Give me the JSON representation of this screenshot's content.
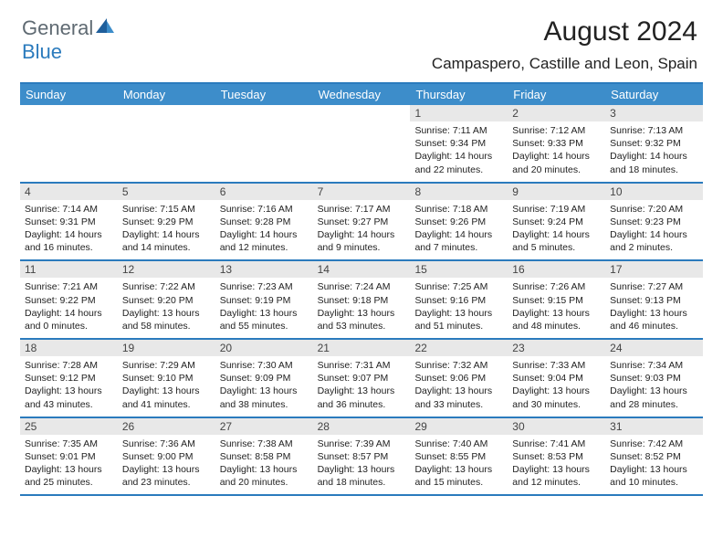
{
  "logo": {
    "text1": "General",
    "text2": "Blue"
  },
  "title": "August 2024",
  "location": "Campaspero, Castille and Leon, Spain",
  "colors": {
    "header_bg": "#3d8dca",
    "header_text": "#ffffff",
    "border": "#2b7bbd",
    "date_bg": "#e8e8e8",
    "logo_gray": "#5f6a72",
    "logo_blue": "#2b7bbd"
  },
  "day_names": [
    "Sunday",
    "Monday",
    "Tuesday",
    "Wednesday",
    "Thursday",
    "Friday",
    "Saturday"
  ],
  "weeks": [
    [
      {
        "date": "",
        "sunrise": "",
        "sunset": "",
        "daylight1": "",
        "daylight2": ""
      },
      {
        "date": "",
        "sunrise": "",
        "sunset": "",
        "daylight1": "",
        "daylight2": ""
      },
      {
        "date": "",
        "sunrise": "",
        "sunset": "",
        "daylight1": "",
        "daylight2": ""
      },
      {
        "date": "",
        "sunrise": "",
        "sunset": "",
        "daylight1": "",
        "daylight2": ""
      },
      {
        "date": "1",
        "sunrise": "Sunrise: 7:11 AM",
        "sunset": "Sunset: 9:34 PM",
        "daylight1": "Daylight: 14 hours",
        "daylight2": "and 22 minutes."
      },
      {
        "date": "2",
        "sunrise": "Sunrise: 7:12 AM",
        "sunset": "Sunset: 9:33 PM",
        "daylight1": "Daylight: 14 hours",
        "daylight2": "and 20 minutes."
      },
      {
        "date": "3",
        "sunrise": "Sunrise: 7:13 AM",
        "sunset": "Sunset: 9:32 PM",
        "daylight1": "Daylight: 14 hours",
        "daylight2": "and 18 minutes."
      }
    ],
    [
      {
        "date": "4",
        "sunrise": "Sunrise: 7:14 AM",
        "sunset": "Sunset: 9:31 PM",
        "daylight1": "Daylight: 14 hours",
        "daylight2": "and 16 minutes."
      },
      {
        "date": "5",
        "sunrise": "Sunrise: 7:15 AM",
        "sunset": "Sunset: 9:29 PM",
        "daylight1": "Daylight: 14 hours",
        "daylight2": "and 14 minutes."
      },
      {
        "date": "6",
        "sunrise": "Sunrise: 7:16 AM",
        "sunset": "Sunset: 9:28 PM",
        "daylight1": "Daylight: 14 hours",
        "daylight2": "and 12 minutes."
      },
      {
        "date": "7",
        "sunrise": "Sunrise: 7:17 AM",
        "sunset": "Sunset: 9:27 PM",
        "daylight1": "Daylight: 14 hours",
        "daylight2": "and 9 minutes."
      },
      {
        "date": "8",
        "sunrise": "Sunrise: 7:18 AM",
        "sunset": "Sunset: 9:26 PM",
        "daylight1": "Daylight: 14 hours",
        "daylight2": "and 7 minutes."
      },
      {
        "date": "9",
        "sunrise": "Sunrise: 7:19 AM",
        "sunset": "Sunset: 9:24 PM",
        "daylight1": "Daylight: 14 hours",
        "daylight2": "and 5 minutes."
      },
      {
        "date": "10",
        "sunrise": "Sunrise: 7:20 AM",
        "sunset": "Sunset: 9:23 PM",
        "daylight1": "Daylight: 14 hours",
        "daylight2": "and 2 minutes."
      }
    ],
    [
      {
        "date": "11",
        "sunrise": "Sunrise: 7:21 AM",
        "sunset": "Sunset: 9:22 PM",
        "daylight1": "Daylight: 14 hours",
        "daylight2": "and 0 minutes."
      },
      {
        "date": "12",
        "sunrise": "Sunrise: 7:22 AM",
        "sunset": "Sunset: 9:20 PM",
        "daylight1": "Daylight: 13 hours",
        "daylight2": "and 58 minutes."
      },
      {
        "date": "13",
        "sunrise": "Sunrise: 7:23 AM",
        "sunset": "Sunset: 9:19 PM",
        "daylight1": "Daylight: 13 hours",
        "daylight2": "and 55 minutes."
      },
      {
        "date": "14",
        "sunrise": "Sunrise: 7:24 AM",
        "sunset": "Sunset: 9:18 PM",
        "daylight1": "Daylight: 13 hours",
        "daylight2": "and 53 minutes."
      },
      {
        "date": "15",
        "sunrise": "Sunrise: 7:25 AM",
        "sunset": "Sunset: 9:16 PM",
        "daylight1": "Daylight: 13 hours",
        "daylight2": "and 51 minutes."
      },
      {
        "date": "16",
        "sunrise": "Sunrise: 7:26 AM",
        "sunset": "Sunset: 9:15 PM",
        "daylight1": "Daylight: 13 hours",
        "daylight2": "and 48 minutes."
      },
      {
        "date": "17",
        "sunrise": "Sunrise: 7:27 AM",
        "sunset": "Sunset: 9:13 PM",
        "daylight1": "Daylight: 13 hours",
        "daylight2": "and 46 minutes."
      }
    ],
    [
      {
        "date": "18",
        "sunrise": "Sunrise: 7:28 AM",
        "sunset": "Sunset: 9:12 PM",
        "daylight1": "Daylight: 13 hours",
        "daylight2": "and 43 minutes."
      },
      {
        "date": "19",
        "sunrise": "Sunrise: 7:29 AM",
        "sunset": "Sunset: 9:10 PM",
        "daylight1": "Daylight: 13 hours",
        "daylight2": "and 41 minutes."
      },
      {
        "date": "20",
        "sunrise": "Sunrise: 7:30 AM",
        "sunset": "Sunset: 9:09 PM",
        "daylight1": "Daylight: 13 hours",
        "daylight2": "and 38 minutes."
      },
      {
        "date": "21",
        "sunrise": "Sunrise: 7:31 AM",
        "sunset": "Sunset: 9:07 PM",
        "daylight1": "Daylight: 13 hours",
        "daylight2": "and 36 minutes."
      },
      {
        "date": "22",
        "sunrise": "Sunrise: 7:32 AM",
        "sunset": "Sunset: 9:06 PM",
        "daylight1": "Daylight: 13 hours",
        "daylight2": "and 33 minutes."
      },
      {
        "date": "23",
        "sunrise": "Sunrise: 7:33 AM",
        "sunset": "Sunset: 9:04 PM",
        "daylight1": "Daylight: 13 hours",
        "daylight2": "and 30 minutes."
      },
      {
        "date": "24",
        "sunrise": "Sunrise: 7:34 AM",
        "sunset": "Sunset: 9:03 PM",
        "daylight1": "Daylight: 13 hours",
        "daylight2": "and 28 minutes."
      }
    ],
    [
      {
        "date": "25",
        "sunrise": "Sunrise: 7:35 AM",
        "sunset": "Sunset: 9:01 PM",
        "daylight1": "Daylight: 13 hours",
        "daylight2": "and 25 minutes."
      },
      {
        "date": "26",
        "sunrise": "Sunrise: 7:36 AM",
        "sunset": "Sunset: 9:00 PM",
        "daylight1": "Daylight: 13 hours",
        "daylight2": "and 23 minutes."
      },
      {
        "date": "27",
        "sunrise": "Sunrise: 7:38 AM",
        "sunset": "Sunset: 8:58 PM",
        "daylight1": "Daylight: 13 hours",
        "daylight2": "and 20 minutes."
      },
      {
        "date": "28",
        "sunrise": "Sunrise: 7:39 AM",
        "sunset": "Sunset: 8:57 PM",
        "daylight1": "Daylight: 13 hours",
        "daylight2": "and 18 minutes."
      },
      {
        "date": "29",
        "sunrise": "Sunrise: 7:40 AM",
        "sunset": "Sunset: 8:55 PM",
        "daylight1": "Daylight: 13 hours",
        "daylight2": "and 15 minutes."
      },
      {
        "date": "30",
        "sunrise": "Sunrise: 7:41 AM",
        "sunset": "Sunset: 8:53 PM",
        "daylight1": "Daylight: 13 hours",
        "daylight2": "and 12 minutes."
      },
      {
        "date": "31",
        "sunrise": "Sunrise: 7:42 AM",
        "sunset": "Sunset: 8:52 PM",
        "daylight1": "Daylight: 13 hours",
        "daylight2": "and 10 minutes."
      }
    ]
  ]
}
